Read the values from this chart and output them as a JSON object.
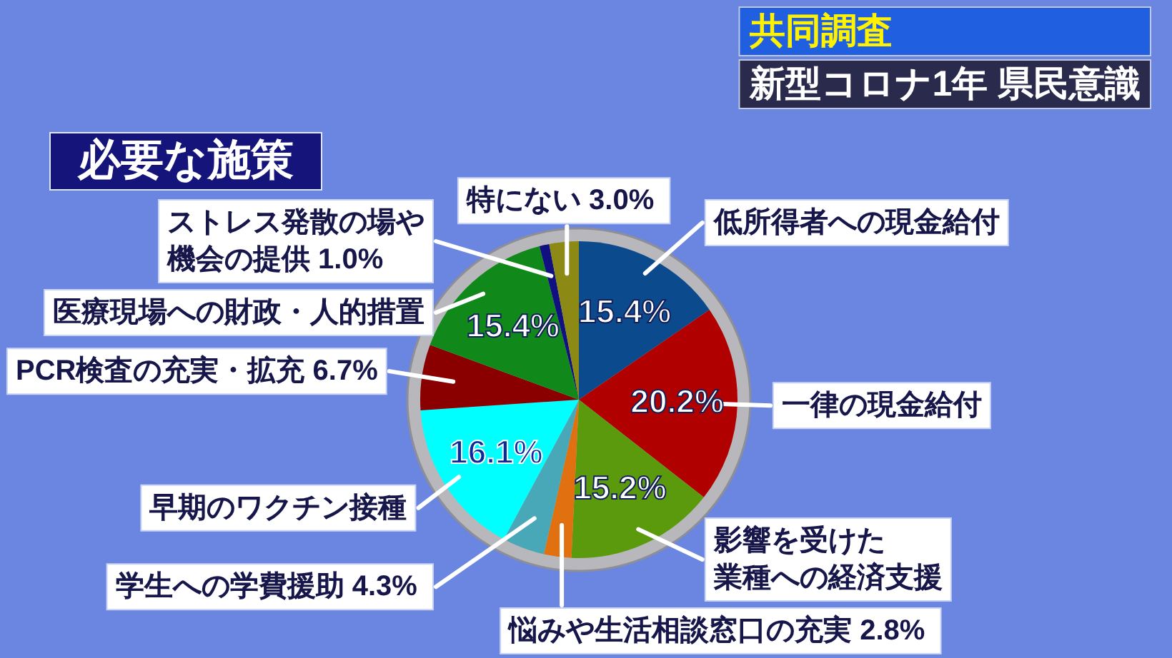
{
  "chart_data": {
    "type": "pie",
    "title": "必要な施策",
    "subtitle": "新型コロナ1年 県民意識",
    "annotations": [
      "共同調査"
    ],
    "categories": [
      "低所得者への現金給付",
      "一律の現金給付",
      "影響を受けた業種への経済支援",
      "悩みや生活相談窓口の充実",
      "学生への学費援助",
      "早期のワクチン接種",
      "PCR検査の充実・拡充",
      "医療現場への財政・人的措置",
      "ストレス発散の場や機会の提供",
      "特にない"
    ],
    "values": [
      15.4,
      20.2,
      15.2,
      2.8,
      4.3,
      16.1,
      6.7,
      15.4,
      1.0,
      3.0
    ],
    "colors": [
      "#0b4a8c",
      "#b00000",
      "#5a9a0c",
      "#e07010",
      "#48a8b8",
      "#00ffff",
      "#8a0000",
      "#10881a",
      "#101080",
      "#8c8a14"
    ],
    "value_labels": [
      "15.4%",
      "20.2%",
      "15.2%",
      "2.8%",
      "4.3%",
      "16.1%",
      "6.7%",
      "15.4%",
      "1.0%",
      "3.0%"
    ]
  }
}
